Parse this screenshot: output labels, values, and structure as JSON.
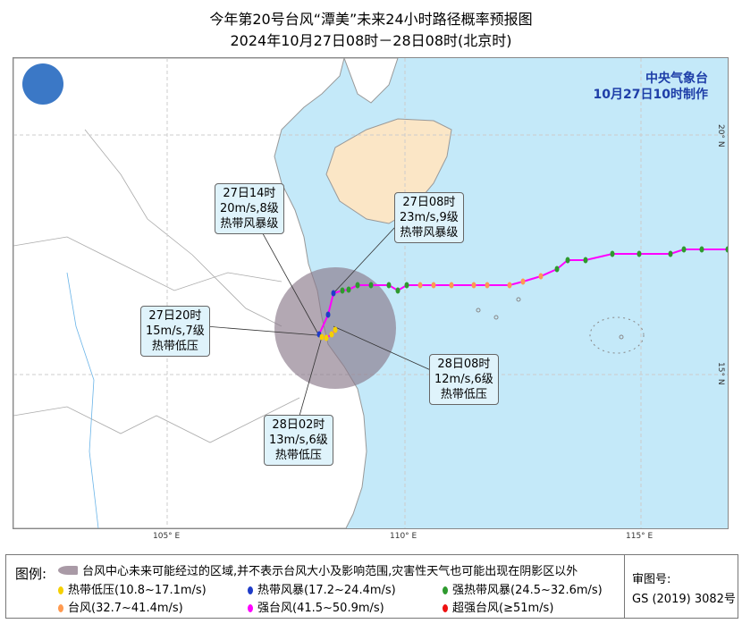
{
  "title": "今年第20号台风“潭美”未来24小时路径概率预报图",
  "subtitle": "2024年10月27日08时－28日08时(北京时)",
  "agency": "中央气象台",
  "issued": "10月27日10时制作",
  "axes": {
    "lon": [
      "105° E",
      "110° E",
      "115° E"
    ],
    "lat": [
      "20° N",
      "15° N"
    ]
  },
  "colors": {
    "sea": "#c4e9f9",
    "land": "#ffffff",
    "hainan": "#fbe6c6",
    "cone": "#8a7a8a",
    "track": "#ff00ff",
    "td": "#f5d000",
    "ts": "#1f3cc8",
    "sts": "#2e9a2e",
    "ty": "#ff9a50",
    "sty": "#ff00ff",
    "super": "#ee1111"
  },
  "callouts": [
    {
      "time": "27日14时",
      "wind": "20m/s,8级",
      "level": "热带风暴级"
    },
    {
      "time": "27日08时",
      "wind": "23m/s,9级",
      "level": "热带风暴级"
    },
    {
      "time": "27日20时",
      "wind": "15m/s,7级",
      "level": "热带低压"
    },
    {
      "time": "28日08时",
      "wind": "12m/s,6级",
      "level": "热带低压"
    },
    {
      "time": "28日02时",
      "wind": "13m/s,6级",
      "level": "热带低压"
    }
  ],
  "legend": {
    "label": "图例:",
    "cone": "台风中心未来可能经过的区域,并不表示台风大小及影响范围,灾害性天气也可能出现在阴影区以外",
    "items": [
      {
        "text": "热带低压(10.8~17.1m/s)",
        "color": "#f5d000"
      },
      {
        "text": "热带风暴(17.2~24.4m/s)",
        "color": "#1f3cc8"
      },
      {
        "text": "强热带风暴(24.5~32.6m/s)",
        "color": "#2e9a2e"
      },
      {
        "text": "台风(32.7~41.4m/s)",
        "color": "#ff9a50"
      },
      {
        "text": "强台风(41.5~50.9m/s)",
        "color": "#ff00ff"
      },
      {
        "text": "超强台风(≥51m/s)",
        "color": "#ee1111"
      }
    ],
    "review_label": "审图号:",
    "review_no": "GS (2019) 3082号"
  }
}
